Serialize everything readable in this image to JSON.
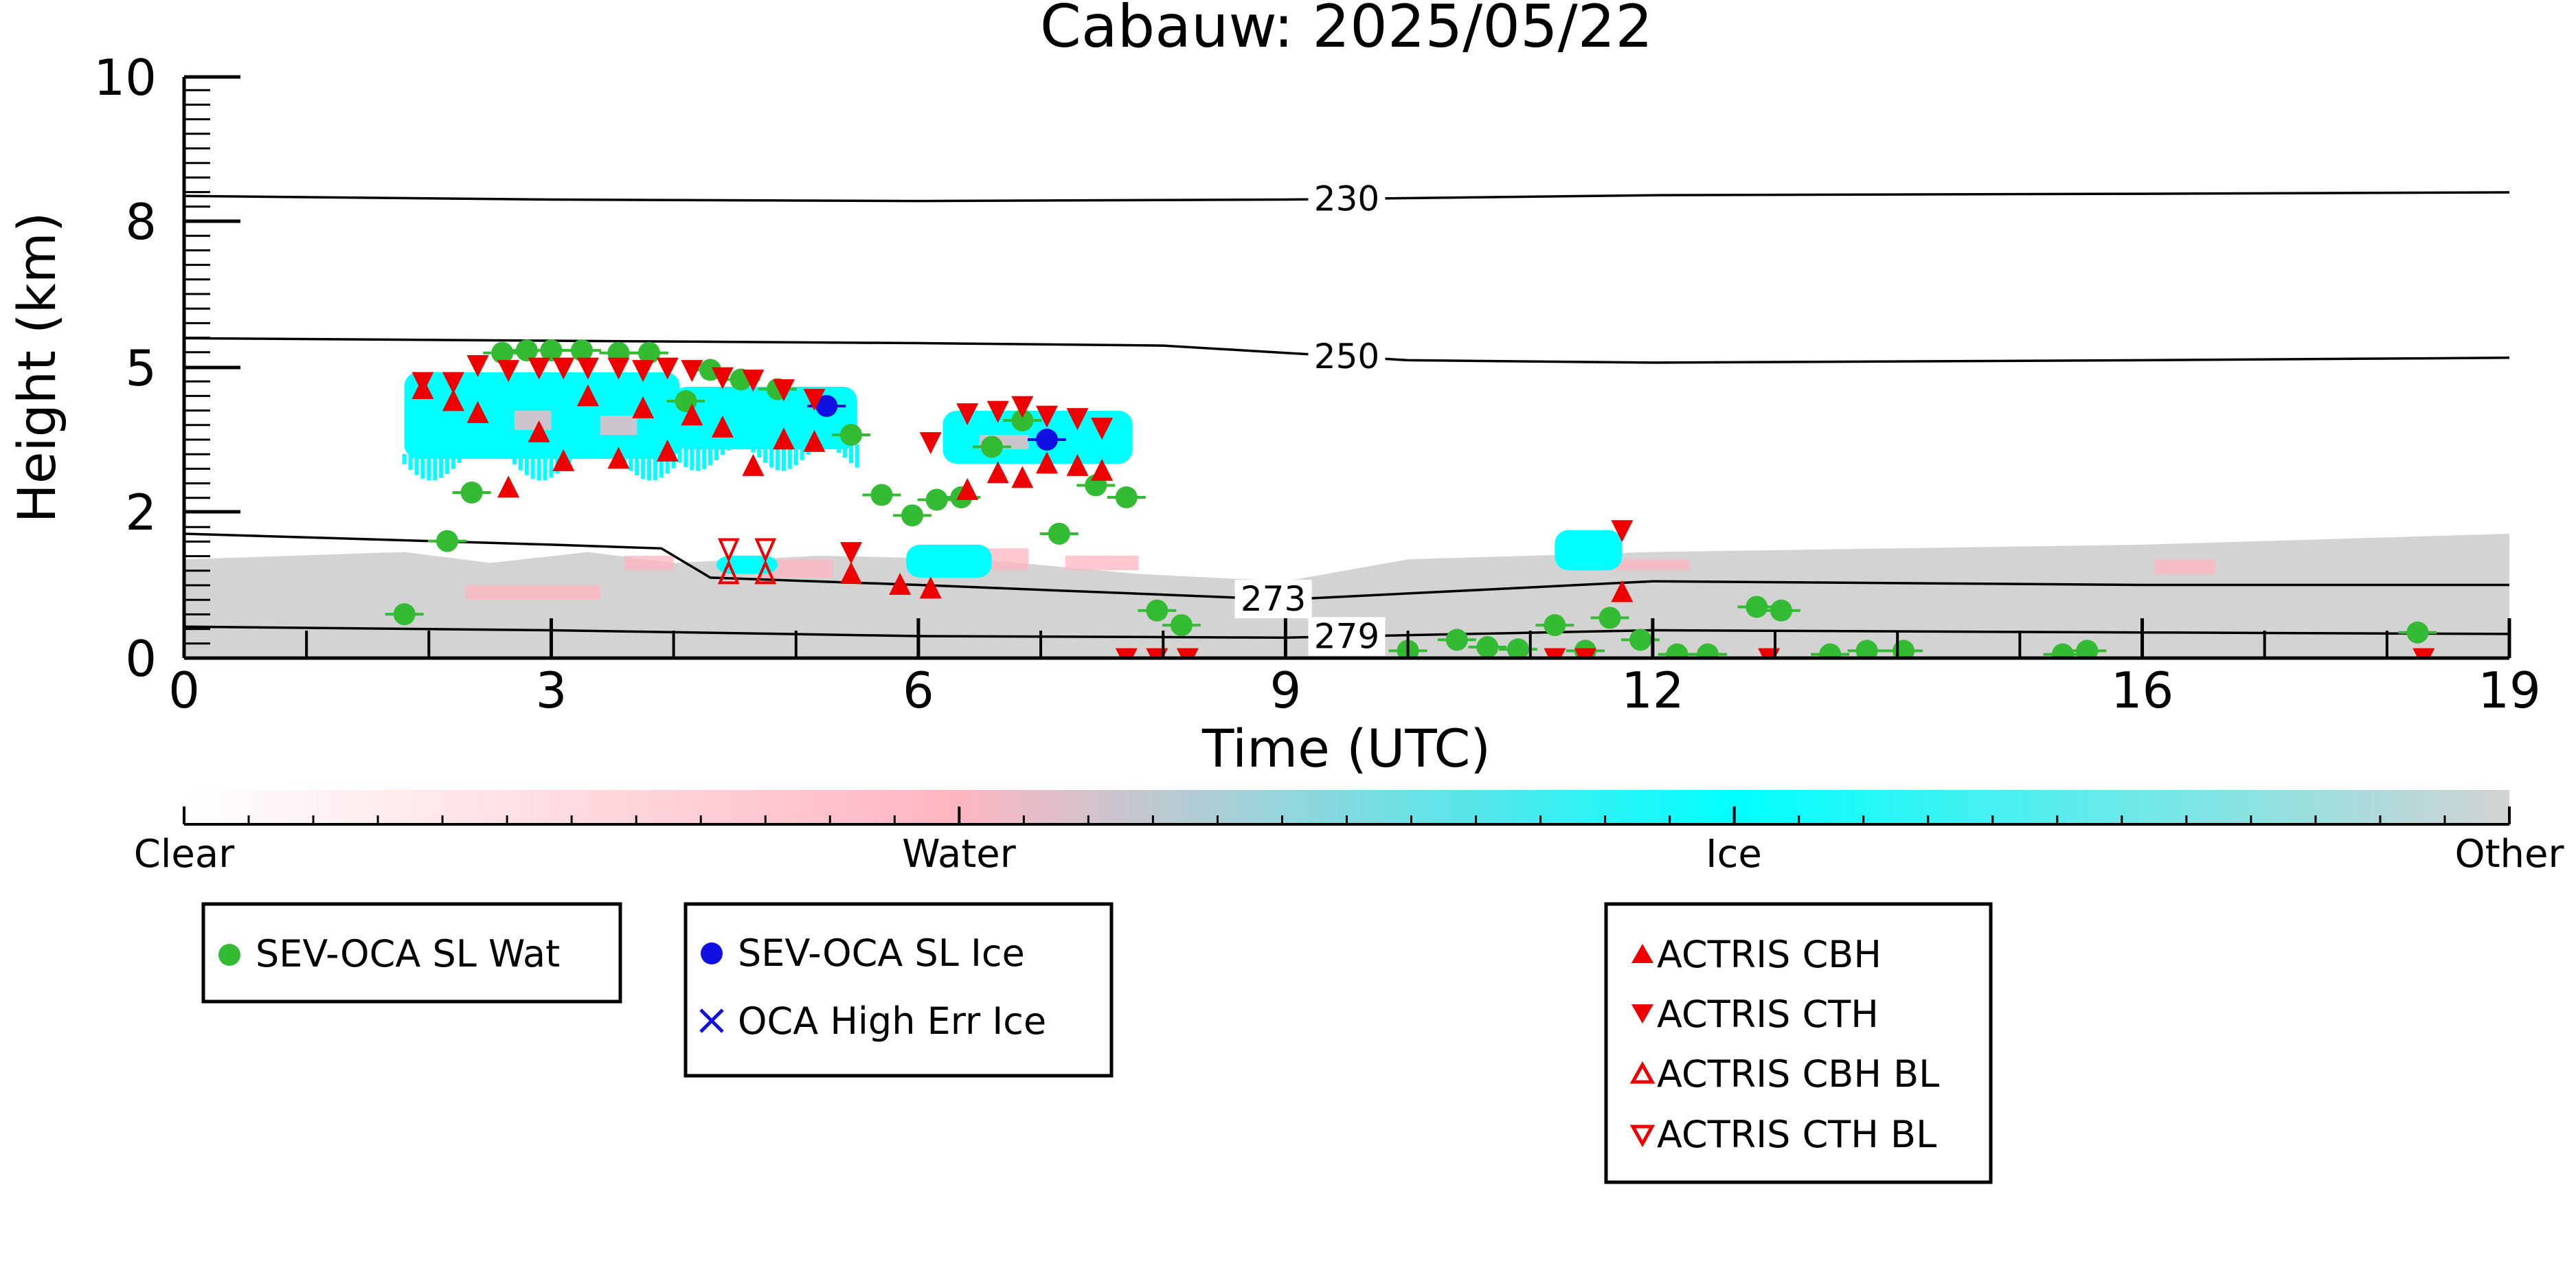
{
  "chart_data": {
    "type": "scatter",
    "title": "Cabauw: 2025/05/22",
    "xlabel": "Time (UTC)",
    "ylabel": "Height (km)",
    "xlim": [
      0,
      19
    ],
    "ylim": [
      0,
      10
    ],
    "y_scale": "nonlinear",
    "x_ticks": [
      0,
      3,
      6,
      9,
      12,
      16,
      19
    ],
    "y_ticks": [
      0,
      2,
      5,
      8,
      10
    ],
    "legend_position": "below-plot",
    "colorbar": {
      "labels": [
        "Clear",
        "Water",
        "Ice",
        "Other"
      ],
      "colors": [
        "#ffffff",
        "#ffb6c1",
        "#00ffff",
        "#d3d3d3"
      ]
    },
    "temperature_contours": [
      {
        "label": "230",
        "points": [
          [
            0,
            8.35
          ],
          [
            3,
            8.3
          ],
          [
            6,
            8.28
          ],
          [
            9,
            8.3
          ],
          [
            12,
            8.36
          ],
          [
            16,
            8.38
          ],
          [
            19,
            8.4
          ]
        ]
      },
      {
        "label": "250",
        "points": [
          [
            0,
            5.6
          ],
          [
            3,
            5.55
          ],
          [
            6,
            5.5
          ],
          [
            8,
            5.45
          ],
          [
            9,
            5.3
          ],
          [
            10,
            5.15
          ],
          [
            12,
            5.1
          ],
          [
            16,
            5.15
          ],
          [
            19,
            5.2
          ]
        ]
      },
      {
        "label": "273",
        "points": [
          [
            0,
            1.7
          ],
          [
            2,
            1.6
          ],
          [
            3,
            1.55
          ],
          [
            3.9,
            1.5
          ],
          [
            4.3,
            1.1
          ],
          [
            6,
            1.0
          ],
          [
            9,
            0.8
          ],
          [
            12,
            1.05
          ],
          [
            16,
            1.0
          ],
          [
            19,
            1.0
          ]
        ]
      },
      {
        "label": "279",
        "points": [
          [
            0,
            0.43
          ],
          [
            3,
            0.38
          ],
          [
            6,
            0.3
          ],
          [
            9,
            0.28
          ],
          [
            12,
            0.38
          ],
          [
            16,
            0.35
          ],
          [
            19,
            0.33
          ]
        ]
      }
    ],
    "series": [
      {
        "name": "SEV-OCA SL Wat",
        "color": "#33bb33",
        "marker": "circle",
        "points": [
          [
            1.8,
            0.6
          ],
          [
            2.15,
            1.6
          ],
          [
            2.35,
            2.4
          ],
          [
            2.6,
            5.3
          ],
          [
            2.8,
            5.35
          ],
          [
            3.0,
            5.35
          ],
          [
            3.25,
            5.35
          ],
          [
            3.55,
            5.3
          ],
          [
            3.8,
            5.3
          ],
          [
            4.1,
            4.3
          ],
          [
            4.3,
            4.95
          ],
          [
            4.55,
            4.75
          ],
          [
            4.85,
            4.55
          ],
          [
            5.45,
            3.6
          ],
          [
            5.7,
            2.35
          ],
          [
            5.95,
            1.95
          ],
          [
            6.15,
            2.25
          ],
          [
            6.35,
            2.3
          ],
          [
            6.6,
            3.35
          ],
          [
            6.85,
            3.9
          ],
          [
            7.15,
            1.7
          ],
          [
            7.45,
            2.55
          ],
          [
            7.7,
            2.3
          ],
          [
            7.95,
            0.65
          ],
          [
            8.15,
            0.45
          ],
          [
            10.0,
            0.1
          ],
          [
            10.4,
            0.25
          ],
          [
            10.65,
            0.15
          ],
          [
            10.9,
            0.12
          ],
          [
            11.2,
            0.45
          ],
          [
            11.45,
            0.1
          ],
          [
            11.65,
            0.55
          ],
          [
            11.9,
            0.25
          ],
          [
            12.2,
            0.05
          ],
          [
            12.45,
            0.05
          ],
          [
            12.85,
            0.7
          ],
          [
            13.05,
            0.65
          ],
          [
            13.45,
            0.05
          ],
          [
            13.75,
            0.1
          ],
          [
            14.05,
            0.1
          ],
          [
            15.35,
            0.05
          ],
          [
            15.55,
            0.1
          ],
          [
            18.25,
            0.35
          ]
        ]
      },
      {
        "name": "SEV-OCA SL Ice",
        "color": "#1010e0",
        "marker": "circle",
        "points": [
          [
            5.25,
            4.2
          ],
          [
            7.05,
            3.5
          ]
        ]
      },
      {
        "name": "OCA High Err Ice",
        "color": "#1010e0",
        "marker": "x",
        "points": []
      },
      {
        "name": "ACTRIS CBH",
        "color": "#ee0000",
        "marker": "triangle-up",
        "points": [
          [
            1.95,
            4.55
          ],
          [
            2.2,
            4.3
          ],
          [
            2.4,
            4.05
          ],
          [
            2.65,
            2.5
          ],
          [
            2.9,
            3.65
          ],
          [
            3.1,
            3.05
          ],
          [
            3.3,
            4.4
          ],
          [
            3.55,
            3.1
          ],
          [
            3.75,
            4.15
          ],
          [
            3.95,
            3.25
          ],
          [
            4.15,
            4.0
          ],
          [
            4.4,
            3.75
          ],
          [
            4.65,
            2.95
          ],
          [
            4.9,
            3.5
          ],
          [
            5.15,
            3.45
          ],
          [
            5.45,
            1.15
          ],
          [
            5.85,
            1.0
          ],
          [
            6.1,
            0.95
          ],
          [
            6.4,
            2.45
          ],
          [
            6.65,
            2.8
          ],
          [
            6.85,
            2.7
          ],
          [
            7.05,
            3.0
          ],
          [
            7.3,
            2.95
          ],
          [
            7.5,
            2.85
          ],
          [
            11.75,
            0.9
          ]
        ]
      },
      {
        "name": "ACTRIS CTH",
        "color": "#ee0000",
        "marker": "triangle-down",
        "points": [
          [
            1.95,
            4.7
          ],
          [
            2.2,
            4.7
          ],
          [
            2.4,
            5.05
          ],
          [
            2.65,
            4.95
          ],
          [
            2.9,
            5.0
          ],
          [
            3.1,
            5.0
          ],
          [
            3.3,
            5.0
          ],
          [
            3.55,
            5.0
          ],
          [
            3.75,
            4.95
          ],
          [
            3.95,
            5.0
          ],
          [
            4.15,
            4.95
          ],
          [
            4.4,
            4.8
          ],
          [
            4.65,
            4.75
          ],
          [
            4.9,
            4.55
          ],
          [
            5.15,
            4.35
          ],
          [
            5.45,
            1.45
          ],
          [
            6.1,
            3.45
          ],
          [
            6.4,
            4.05
          ],
          [
            6.65,
            4.1
          ],
          [
            6.85,
            4.2
          ],
          [
            7.05,
            4.0
          ],
          [
            7.3,
            3.95
          ],
          [
            7.5,
            3.75
          ],
          [
            7.7,
            0.0
          ],
          [
            7.95,
            0.0
          ],
          [
            8.2,
            0.0
          ],
          [
            11.75,
            1.75
          ],
          [
            11.2,
            0.0
          ],
          [
            11.45,
            0.0
          ],
          [
            12.95,
            0.0
          ],
          [
            18.3,
            0.0
          ]
        ]
      },
      {
        "name": "ACTRIS CBH BL",
        "color": "#ee0000",
        "marker": "triangle-up-open",
        "points": [
          [
            4.45,
            1.15
          ],
          [
            4.75,
            1.15
          ]
        ]
      },
      {
        "name": "ACTRIS CTH BL",
        "color": "#ee0000",
        "marker": "triangle-down-open",
        "points": [
          [
            4.45,
            1.5
          ],
          [
            4.75,
            1.5
          ]
        ]
      }
    ]
  }
}
